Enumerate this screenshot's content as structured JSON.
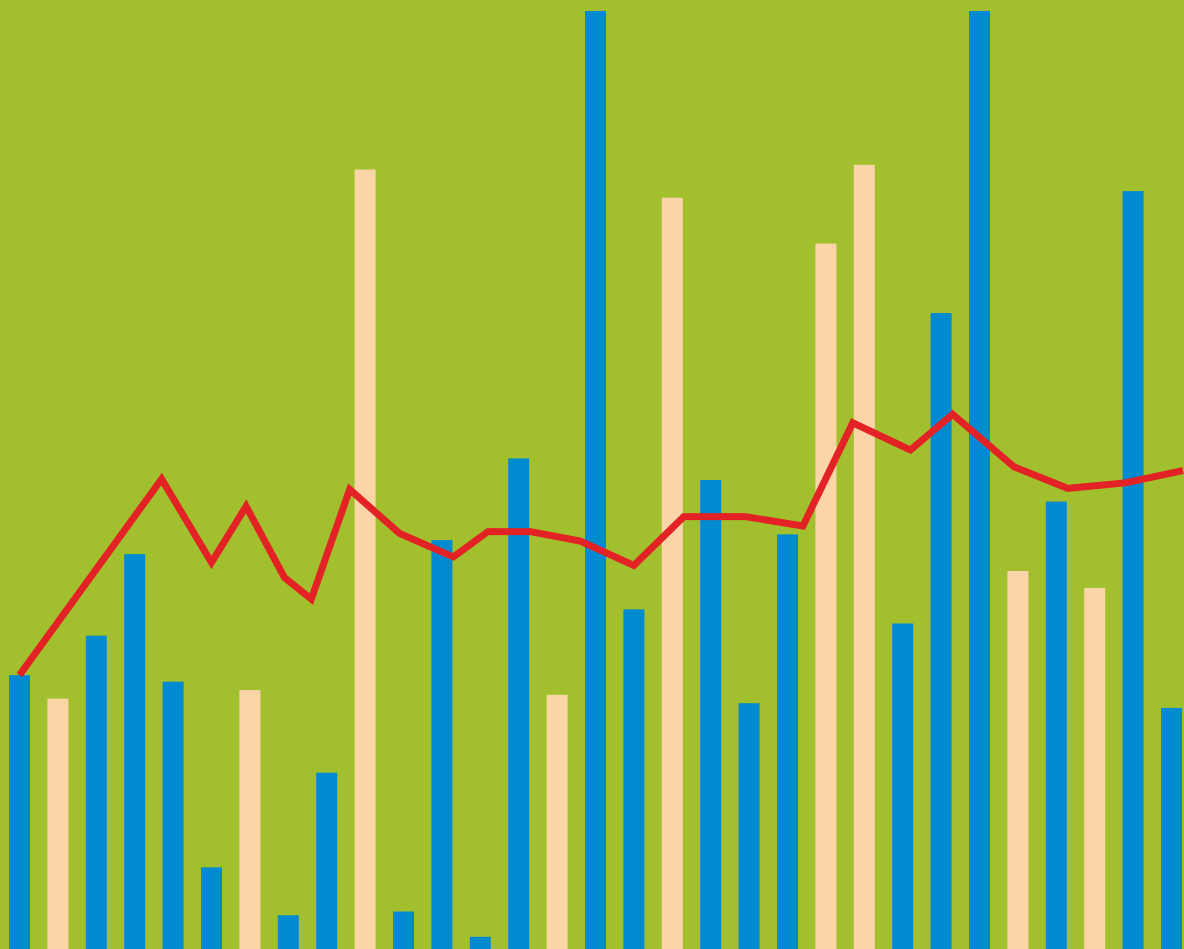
{
  "colors": {
    "background": "#a2c02d",
    "bar_primary": "#008bd1",
    "bar_secondary": "#fad5a8",
    "line": "#e32226"
  },
  "chart_data": {
    "type": "bar",
    "title": "",
    "xlabel": "",
    "ylabel": "",
    "ylim": [
      0,
      100
    ],
    "grid": false,
    "legend": "none",
    "bars": [
      {
        "value": 29.2,
        "style": "primary"
      },
      {
        "value": 26.7,
        "style": "secondary"
      },
      {
        "value": 33.4,
        "style": "primary"
      },
      {
        "value": 42.1,
        "style": "primary"
      },
      {
        "value": 28.5,
        "style": "primary"
      },
      {
        "value": 8.7,
        "style": "primary"
      },
      {
        "value": 27.6,
        "style": "secondary"
      },
      {
        "value": 3.6,
        "style": "primary"
      },
      {
        "value": 18.8,
        "style": "primary"
      },
      {
        "value": 83.1,
        "style": "secondary"
      },
      {
        "value": 4.0,
        "style": "primary"
      },
      {
        "value": 43.6,
        "style": "primary"
      },
      {
        "value": 1.3,
        "style": "primary"
      },
      {
        "value": 52.3,
        "style": "primary"
      },
      {
        "value": 27.1,
        "style": "secondary"
      },
      {
        "value": 100.0,
        "style": "primary"
      },
      {
        "value": 36.2,
        "style": "primary"
      },
      {
        "value": 80.1,
        "style": "secondary"
      },
      {
        "value": 50.0,
        "style": "primary"
      },
      {
        "value": 26.2,
        "style": "primary"
      },
      {
        "value": 44.2,
        "style": "primary"
      },
      {
        "value": 75.2,
        "style": "secondary"
      },
      {
        "value": 83.6,
        "style": "secondary"
      },
      {
        "value": 34.7,
        "style": "primary"
      },
      {
        "value": 67.8,
        "style": "primary"
      },
      {
        "value": 100.0,
        "style": "primary"
      },
      {
        "value": 40.3,
        "style": "secondary"
      },
      {
        "value": 47.7,
        "style": "primary"
      },
      {
        "value": 38.5,
        "style": "secondary"
      },
      {
        "value": 80.8,
        "style": "primary"
      },
      {
        "value": 25.7,
        "style": "primary"
      }
    ],
    "line": {
      "x": [
        0,
        3.7,
        5.0,
        5.9,
        6.9,
        7.6,
        8.6,
        9.9,
        11.3,
        12.2,
        13.3,
        14.6,
        16.0,
        17.3,
        18.9,
        20.4,
        21.7,
        23.2,
        24.3,
        25.9,
        27.3,
        28.8,
        30.3
      ],
      "y": [
        29.2,
        50.1,
        41.2,
        47.2,
        39.6,
        37.3,
        49.0,
        44.3,
        41.8,
        44.5,
        44.5,
        43.5,
        40.9,
        46.1,
        46.1,
        45.1,
        56.1,
        53.2,
        57.0,
        51.4,
        49.1,
        49.7,
        51.0
      ]
    }
  }
}
